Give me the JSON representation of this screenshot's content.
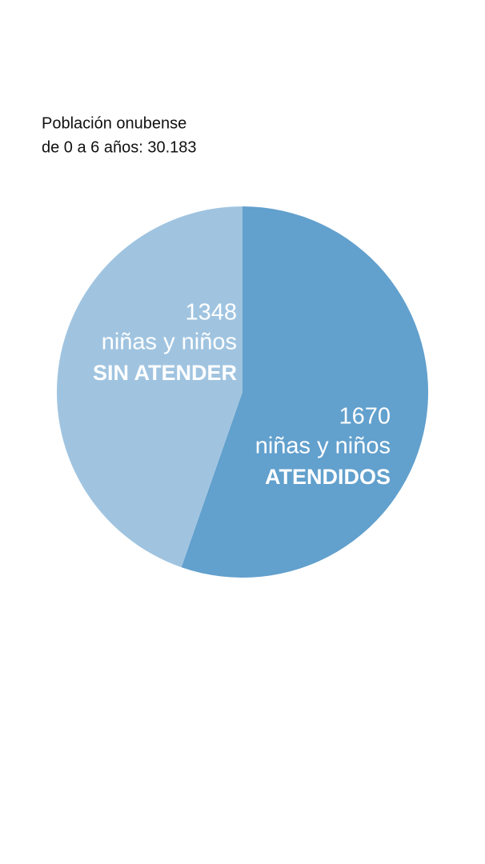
{
  "chart_data": {
    "type": "pie",
    "title": [
      "Población onubense",
      "de 0 a 6 años: 30.183"
    ],
    "categories": [
      "ATENDIDOS",
      "SIN ATENDER"
    ],
    "values": [
      1670,
      1348
    ],
    "sublabels": [
      "niñas y niños",
      "niñas y niños"
    ],
    "colors": [
      "#62a0cd",
      "#a0c4e0"
    ]
  }
}
